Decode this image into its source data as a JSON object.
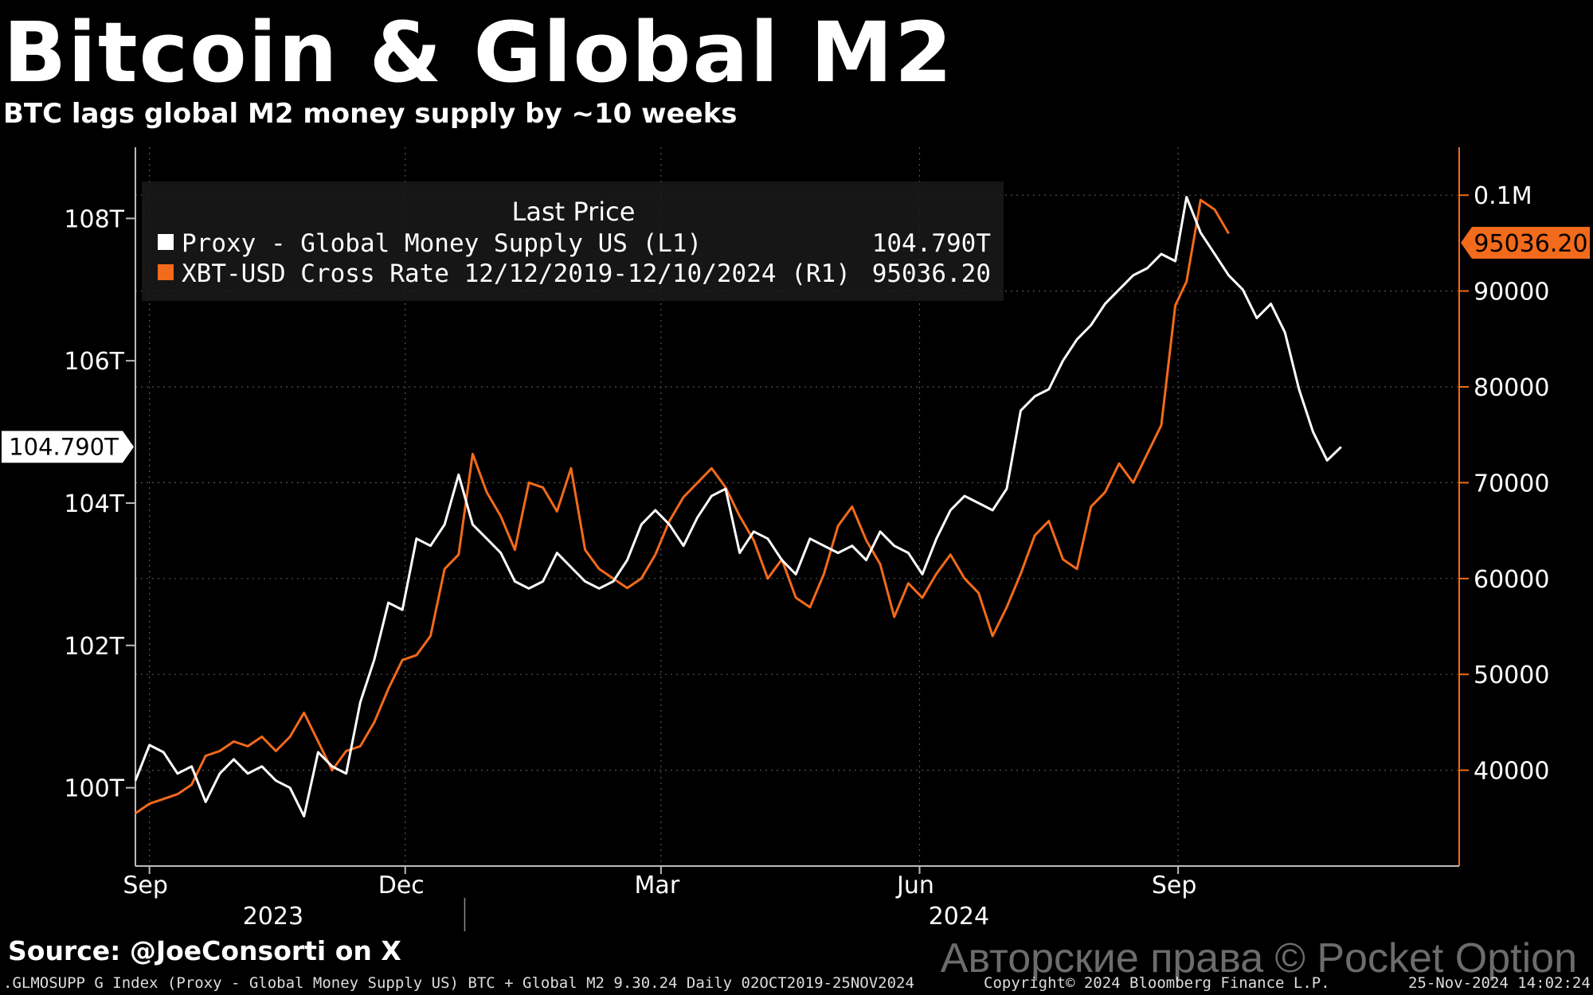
{
  "header": {
    "title": "Bitcoin & Global M2",
    "subtitle": "BTC lags global M2 money supply by ~10 weeks"
  },
  "source": "Source: @JoeConsorti on X",
  "footer": {
    "left": ".GLMOSUPP G Index (Proxy - Global Money Supply US) BTC + Global M2 9.30.24  Daily 02OCT2019-25NOV2024",
    "middle": "Copyright© 2024 Bloomberg Finance L.P.",
    "right": "25-Nov-2024 14:02:24"
  },
  "watermark": "Авторские права © Pocket Option",
  "colors": {
    "background": "#000000",
    "m2": "#ffffff",
    "btc": "#f26a1b"
  },
  "chart_data": {
    "type": "line",
    "title": "Bitcoin & Global M2",
    "subtitle": "BTC lags global M2 money supply by ~10 weeks",
    "legend": {
      "header": "Last Price",
      "entries": [
        {
          "label": "Proxy - Global Money Supply US  (L1)",
          "value": "104.790T",
          "color": "#ffffff"
        },
        {
          "label": "XBT-USD Cross Rate 12/12/2019-12/10/2024  (R1)",
          "value": "95036.20",
          "color": "#f26a1b"
        }
      ]
    },
    "x_axis": {
      "ticks": [
        {
          "label": "Sep",
          "date": "2023-09"
        },
        {
          "label": "Dec",
          "date": "2023-12"
        },
        {
          "label": "Mar",
          "date": "2024-03"
        },
        {
          "label": "Jun",
          "date": "2024-06"
        },
        {
          "label": "Sep",
          "date": "2024-09"
        }
      ],
      "years": [
        {
          "label": "2023",
          "date": "2023-10-15"
        },
        {
          "label": "2024",
          "date": "2024-06-15"
        }
      ],
      "range": [
        "2023-08-27",
        "2024-12-10"
      ]
    },
    "left_axis": {
      "range": [
        98.9,
        109.0
      ],
      "ticks": [
        {
          "value": 100,
          "label": "100T"
        },
        {
          "value": 102,
          "label": "102T"
        },
        {
          "value": 104,
          "label": "104T"
        },
        {
          "value": 106,
          "label": "106T"
        },
        {
          "value": 108,
          "label": "108T"
        }
      ],
      "last_value_label": "104.790T"
    },
    "right_axis": {
      "range": [
        30000,
        105000
      ],
      "ticks": [
        {
          "value": 40000,
          "label": "40000"
        },
        {
          "value": 50000,
          "label": "50000"
        },
        {
          "value": 60000,
          "label": "60000"
        },
        {
          "value": 70000,
          "label": "70000"
        },
        {
          "value": 80000,
          "label": "80000"
        },
        {
          "value": 90000,
          "label": "90000"
        },
        {
          "value": 100000,
          "label": "0.1M"
        }
      ],
      "last_value_label": "95036.20"
    },
    "series": [
      {
        "name": "Proxy - Global Money Supply US (L1)",
        "axis": "left",
        "color": "#ffffff",
        "points": [
          [
            "2023-08-27",
            100.1
          ],
          [
            "2023-09-01",
            100.6
          ],
          [
            "2023-09-06",
            100.5
          ],
          [
            "2023-09-11",
            100.2
          ],
          [
            "2023-09-16",
            100.3
          ],
          [
            "2023-09-21",
            99.8
          ],
          [
            "2023-09-26",
            100.2
          ],
          [
            "2023-10-01",
            100.4
          ],
          [
            "2023-10-06",
            100.2
          ],
          [
            "2023-10-11",
            100.3
          ],
          [
            "2023-10-16",
            100.1
          ],
          [
            "2023-10-21",
            100.0
          ],
          [
            "2023-10-26",
            99.6
          ],
          [
            "2023-10-31",
            100.5
          ],
          [
            "2023-11-05",
            100.3
          ],
          [
            "2023-11-10",
            100.2
          ],
          [
            "2023-11-15",
            101.2
          ],
          [
            "2023-11-20",
            101.8
          ],
          [
            "2023-11-25",
            102.6
          ],
          [
            "2023-11-30",
            102.5
          ],
          [
            "2023-12-05",
            103.5
          ],
          [
            "2023-12-10",
            103.4
          ],
          [
            "2023-12-15",
            103.7
          ],
          [
            "2023-12-20",
            104.4
          ],
          [
            "2023-12-25",
            103.7
          ],
          [
            "2023-12-30",
            103.5
          ],
          [
            "2024-01-04",
            103.3
          ],
          [
            "2024-01-09",
            102.9
          ],
          [
            "2024-01-14",
            102.8
          ],
          [
            "2024-01-19",
            102.9
          ],
          [
            "2024-01-24",
            103.3
          ],
          [
            "2024-01-29",
            103.1
          ],
          [
            "2024-02-03",
            102.9
          ],
          [
            "2024-02-08",
            102.8
          ],
          [
            "2024-02-13",
            102.9
          ],
          [
            "2024-02-18",
            103.2
          ],
          [
            "2024-02-23",
            103.7
          ],
          [
            "2024-02-28",
            103.9
          ],
          [
            "2024-03-04",
            103.7
          ],
          [
            "2024-03-09",
            103.4
          ],
          [
            "2024-03-14",
            103.8
          ],
          [
            "2024-03-19",
            104.1
          ],
          [
            "2024-03-24",
            104.2
          ],
          [
            "2024-03-29",
            103.3
          ],
          [
            "2024-04-03",
            103.6
          ],
          [
            "2024-04-08",
            103.5
          ],
          [
            "2024-04-13",
            103.2
          ],
          [
            "2024-04-18",
            103.0
          ],
          [
            "2024-04-23",
            103.5
          ],
          [
            "2024-04-28",
            103.4
          ],
          [
            "2024-05-03",
            103.3
          ],
          [
            "2024-05-08",
            103.4
          ],
          [
            "2024-05-13",
            103.2
          ],
          [
            "2024-05-18",
            103.6
          ],
          [
            "2024-05-23",
            103.4
          ],
          [
            "2024-05-28",
            103.3
          ],
          [
            "2024-06-02",
            103.0
          ],
          [
            "2024-06-07",
            103.5
          ],
          [
            "2024-06-12",
            103.9
          ],
          [
            "2024-06-17",
            104.1
          ],
          [
            "2024-06-22",
            104.0
          ],
          [
            "2024-06-27",
            103.9
          ],
          [
            "2024-07-02",
            104.2
          ],
          [
            "2024-07-07",
            105.3
          ],
          [
            "2024-07-12",
            105.5
          ],
          [
            "2024-07-17",
            105.6
          ],
          [
            "2024-07-22",
            106.0
          ],
          [
            "2024-07-27",
            106.3
          ],
          [
            "2024-08-01",
            106.5
          ],
          [
            "2024-08-06",
            106.8
          ],
          [
            "2024-08-11",
            107.0
          ],
          [
            "2024-08-16",
            107.2
          ],
          [
            "2024-08-21",
            107.3
          ],
          [
            "2024-08-26",
            107.5
          ],
          [
            "2024-08-31",
            107.4
          ],
          [
            "2024-09-04",
            108.3
          ],
          [
            "2024-09-09",
            107.8
          ],
          [
            "2024-09-14",
            107.5
          ],
          [
            "2024-09-19",
            107.2
          ],
          [
            "2024-09-24",
            107.0
          ],
          [
            "2024-09-29",
            106.6
          ],
          [
            "2024-10-04",
            106.8
          ],
          [
            "2024-10-09",
            106.4
          ],
          [
            "2024-10-14",
            105.6
          ],
          [
            "2024-10-19",
            105.0
          ],
          [
            "2024-10-24",
            104.6
          ],
          [
            "2024-10-29",
            104.79
          ]
        ]
      },
      {
        "name": "XBT-USD Cross Rate 12/12/2019-12/10/2024 (R1)",
        "axis": "right",
        "color": "#f26a1b",
        "points": [
          [
            "2023-08-27",
            35500
          ],
          [
            "2023-09-01",
            36500
          ],
          [
            "2023-09-06",
            37000
          ],
          [
            "2023-09-11",
            37500
          ],
          [
            "2023-09-16",
            38500
          ],
          [
            "2023-09-21",
            41500
          ],
          [
            "2023-09-26",
            42000
          ],
          [
            "2023-10-01",
            43000
          ],
          [
            "2023-10-06",
            42500
          ],
          [
            "2023-10-11",
            43500
          ],
          [
            "2023-10-16",
            42000
          ],
          [
            "2023-10-21",
            43500
          ],
          [
            "2023-10-26",
            46000
          ],
          [
            "2023-10-31",
            43000
          ],
          [
            "2023-11-05",
            40000
          ],
          [
            "2023-11-10",
            42000
          ],
          [
            "2023-11-15",
            42500
          ],
          [
            "2023-11-20",
            45000
          ],
          [
            "2023-11-25",
            48500
          ],
          [
            "2023-11-30",
            51500
          ],
          [
            "2023-12-05",
            52000
          ],
          [
            "2023-12-10",
            54000
          ],
          [
            "2023-12-15",
            61000
          ],
          [
            "2023-12-20",
            62500
          ],
          [
            "2023-12-25",
            73000
          ],
          [
            "2023-12-30",
            69000
          ],
          [
            "2024-01-04",
            66500
          ],
          [
            "2024-01-09",
            63000
          ],
          [
            "2024-01-14",
            70000
          ],
          [
            "2024-01-19",
            69500
          ],
          [
            "2024-01-24",
            67000
          ],
          [
            "2024-01-29",
            71500
          ],
          [
            "2024-02-03",
            63000
          ],
          [
            "2024-02-08",
            61000
          ],
          [
            "2024-02-13",
            60000
          ],
          [
            "2024-02-18",
            59000
          ],
          [
            "2024-02-23",
            60000
          ],
          [
            "2024-02-28",
            62500
          ],
          [
            "2024-03-04",
            66000
          ],
          [
            "2024-03-09",
            68500
          ],
          [
            "2024-03-14",
            70000
          ],
          [
            "2024-03-19",
            71500
          ],
          [
            "2024-03-24",
            69500
          ],
          [
            "2024-03-29",
            66500
          ],
          [
            "2024-04-03",
            64000
          ],
          [
            "2024-04-08",
            60000
          ],
          [
            "2024-04-13",
            62000
          ],
          [
            "2024-04-18",
            58000
          ],
          [
            "2024-04-23",
            57000
          ],
          [
            "2024-04-28",
            60500
          ],
          [
            "2024-05-03",
            65500
          ],
          [
            "2024-05-08",
            67500
          ],
          [
            "2024-05-13",
            64000
          ],
          [
            "2024-05-18",
            61500
          ],
          [
            "2024-05-23",
            56000
          ],
          [
            "2024-05-28",
            59500
          ],
          [
            "2024-06-02",
            58000
          ],
          [
            "2024-06-07",
            60500
          ],
          [
            "2024-06-12",
            62500
          ],
          [
            "2024-06-17",
            60000
          ],
          [
            "2024-06-22",
            58500
          ],
          [
            "2024-06-27",
            54000
          ],
          [
            "2024-07-02",
            57000
          ],
          [
            "2024-07-07",
            60500
          ],
          [
            "2024-07-12",
            64500
          ],
          [
            "2024-07-17",
            66000
          ],
          [
            "2024-07-22",
            62000
          ],
          [
            "2024-07-27",
            61000
          ],
          [
            "2024-08-01",
            67500
          ],
          [
            "2024-08-06",
            69000
          ],
          [
            "2024-08-11",
            72000
          ],
          [
            "2024-08-16",
            70000
          ],
          [
            "2024-08-21",
            73000
          ],
          [
            "2024-08-26",
            76000
          ],
          [
            "2024-08-31",
            88500
          ],
          [
            "2024-09-04",
            91000
          ],
          [
            "2024-09-09",
            99500
          ],
          [
            "2024-09-14",
            98500
          ],
          [
            "2024-09-19",
            96000
          ]
        ]
      }
    ]
  }
}
